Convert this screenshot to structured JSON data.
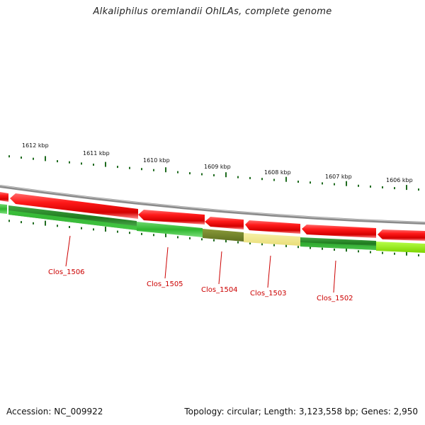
{
  "title": "Alkaliphilus oremlandii OhILAs, complete genome",
  "footer": {
    "accession": "Accession: NC_009922",
    "summary": "Topology: circular; Length: 3,123,558 bp; Genes: 2,950"
  },
  "colors": {
    "backbone": "#8a8a8a",
    "gene_forward_red": "#ee0000",
    "tick_green": "#1f6b1f",
    "gene_label_red": "#cc0000"
  },
  "scale": {
    "labels": [
      "1612 kbp",
      "1611 kbp",
      "1610 kbp",
      "1609 kbp",
      "1608 kbp",
      "1607 kbp",
      "1606 kbp"
    ]
  },
  "genes": [
    {
      "name": "Clos_1506"
    },
    {
      "name": "Clos_1505"
    },
    {
      "name": "Clos_1504"
    },
    {
      "name": "Clos_1503"
    },
    {
      "name": "Clos_1502"
    }
  ]
}
